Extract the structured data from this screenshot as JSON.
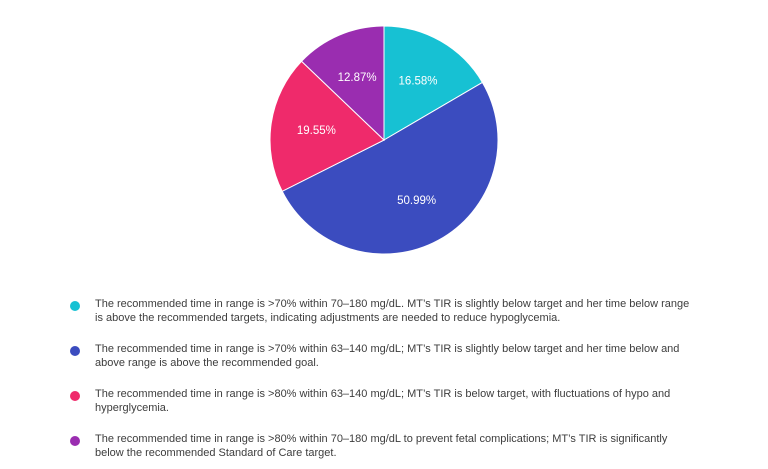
{
  "chart_data": {
    "type": "pie",
    "slices": [
      {
        "label": "16.58%",
        "value": 16.58,
        "color": "#17c1d3"
      },
      {
        "label": "50.99%",
        "value": 50.99,
        "color": "#3b4cbf"
      },
      {
        "label": "19.55%",
        "value": 19.55,
        "color": "#ef2a6b"
      },
      {
        "label": "12.87%",
        "value": 12.87,
        "color": "#9a2db0"
      }
    ],
    "legend": [
      {
        "color": "#17c1d3",
        "text": "The recommended time in range is >70% within 70–180 mg/dL. MT’s TIR is slightly below target and her time below range is above the recommended targets, indicating adjustments are needed to reduce hypoglycemia."
      },
      {
        "color": "#3b4cbf",
        "text": "The recommended time in range is >70% within 63–140 mg/dL; MT’s TIR is slightly below target and her time below and above range is above the recommended goal."
      },
      {
        "color": "#ef2a6b",
        "text": "The recommended time in range is >80% within 63–140 mg/dL; MT’s TIR is below target, with fluctuations of hypo and hyperglycemia."
      },
      {
        "color": "#9a2db0",
        "text": "The recommended time in range is >80% within 70–180 mg/dL to prevent fetal complications; MT’s TIR is significantly below the recommended Standard of Care target."
      }
    ],
    "legend_position": "bottom"
  }
}
